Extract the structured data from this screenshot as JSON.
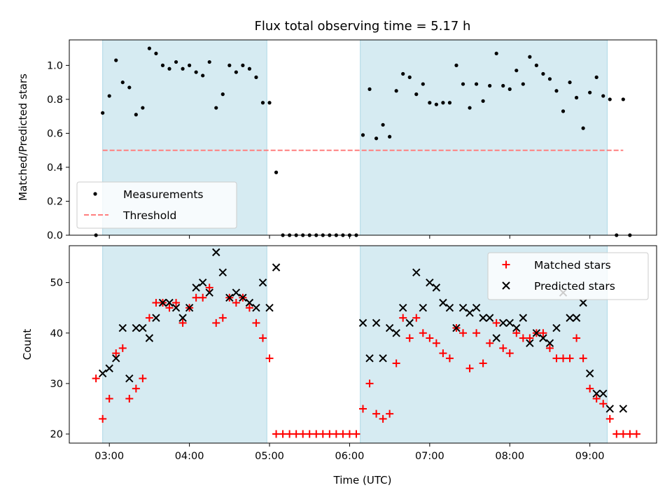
{
  "chart_data": [
    {
      "type": "scatter",
      "title": "Flux total observing time = 5.17 h",
      "ylabel": "Matched/Predicted stars",
      "xlabel": "",
      "xlim": [
        "02:30",
        "09:50"
      ],
      "ylim": [
        0,
        1.15
      ],
      "yticks": [
        0.0,
        0.2,
        0.4,
        0.6,
        0.8,
        1.0
      ],
      "ytick_labels": [
        "0.0",
        "0.2",
        "0.4",
        "0.6",
        "0.8",
        "1.0"
      ],
      "xticks": [
        "03:00",
        "04:00",
        "05:00",
        "06:00",
        "07:00",
        "08:00",
        "09:00"
      ],
      "show_xtick_labels": false,
      "grid": false,
      "legend": "lower-left",
      "shaded_intervals": [
        [
          "02:55",
          "04:58"
        ],
        [
          "06:08",
          "09:13"
        ]
      ],
      "shade_color": "#add8e6",
      "series": [
        {
          "name": "Measurements",
          "color": "#000000",
          "marker": "dot",
          "points": [
            [
              "02:50",
              0.0
            ],
            [
              "02:55",
              0.72
            ],
            [
              "03:00",
              0.82
            ],
            [
              "03:05",
              1.03
            ],
            [
              "03:10",
              0.9
            ],
            [
              "03:15",
              0.87
            ],
            [
              "03:20",
              0.71
            ],
            [
              "03:25",
              0.75
            ],
            [
              "03:30",
              1.1
            ],
            [
              "03:35",
              1.07
            ],
            [
              "03:40",
              1.0
            ],
            [
              "03:45",
              0.98
            ],
            [
              "03:50",
              1.02
            ],
            [
              "03:55",
              0.98
            ],
            [
              "04:00",
              1.0
            ],
            [
              "04:05",
              0.96
            ],
            [
              "04:10",
              0.94
            ],
            [
              "04:15",
              1.02
            ],
            [
              "04:20",
              0.75
            ],
            [
              "04:25",
              0.83
            ],
            [
              "04:30",
              1.0
            ],
            [
              "04:35",
              0.96
            ],
            [
              "04:40",
              1.0
            ],
            [
              "04:45",
              0.98
            ],
            [
              "04:50",
              0.93
            ],
            [
              "04:55",
              0.78
            ],
            [
              "05:00",
              0.78
            ],
            [
              "05:05",
              0.37
            ],
            [
              "05:10",
              0.0
            ],
            [
              "05:15",
              0.0
            ],
            [
              "05:20",
              0.0
            ],
            [
              "05:25",
              0.0
            ],
            [
              "05:30",
              0.0
            ],
            [
              "05:35",
              0.0
            ],
            [
              "05:40",
              0.0
            ],
            [
              "05:45",
              0.0
            ],
            [
              "05:50",
              0.0
            ],
            [
              "05:55",
              0.0
            ],
            [
              "06:00",
              0.0
            ],
            [
              "06:05",
              0.0
            ],
            [
              "06:10",
              0.59
            ],
            [
              "06:15",
              0.86
            ],
            [
              "06:20",
              0.57
            ],
            [
              "06:25",
              0.65
            ],
            [
              "06:30",
              0.58
            ],
            [
              "06:35",
              0.85
            ],
            [
              "06:40",
              0.95
            ],
            [
              "06:45",
              0.93
            ],
            [
              "06:50",
              0.83
            ],
            [
              "06:55",
              0.89
            ],
            [
              "07:00",
              0.78
            ],
            [
              "07:05",
              0.77
            ],
            [
              "07:10",
              0.78
            ],
            [
              "07:15",
              0.78
            ],
            [
              "07:20",
              1.0
            ],
            [
              "07:25",
              0.89
            ],
            [
              "07:30",
              0.75
            ],
            [
              "07:35",
              0.89
            ],
            [
              "07:40",
              0.79
            ],
            [
              "07:45",
              0.88
            ],
            [
              "07:50",
              1.07
            ],
            [
              "07:55",
              0.88
            ],
            [
              "08:00",
              0.86
            ],
            [
              "08:05",
              0.97
            ],
            [
              "08:10",
              0.89
            ],
            [
              "08:15",
              1.05
            ],
            [
              "08:20",
              1.0
            ],
            [
              "08:25",
              0.95
            ],
            [
              "08:30",
              0.92
            ],
            [
              "08:35",
              0.85
            ],
            [
              "08:40",
              0.73
            ],
            [
              "08:45",
              0.9
            ],
            [
              "08:50",
              0.81
            ],
            [
              "08:55",
              0.63
            ],
            [
              "09:00",
              0.84
            ],
            [
              "09:05",
              0.93
            ],
            [
              "09:10",
              0.82
            ],
            [
              "09:15",
              0.8
            ],
            [
              "09:20",
              0.0
            ],
            [
              "09:25",
              0.8
            ],
            [
              "09:30",
              0.0
            ]
          ]
        },
        {
          "name": "Threshold",
          "color": "#ff7f7f",
          "style": "dashed",
          "points": [
            [
              "02:55",
              0.5
            ],
            [
              "09:25",
              0.5
            ]
          ]
        }
      ]
    },
    {
      "type": "scatter",
      "title": "",
      "ylabel": "Count",
      "xlabel": "Time (UTC)",
      "xlim": [
        "02:30",
        "09:50"
      ],
      "ylim": [
        18.2,
        57.3
      ],
      "yticks": [
        20,
        30,
        40,
        50
      ],
      "ytick_labels": [
        "20",
        "30",
        "40",
        "50"
      ],
      "xticks": [
        "03:00",
        "04:00",
        "05:00",
        "06:00",
        "07:00",
        "08:00",
        "09:00"
      ],
      "xtick_labels": [
        "03:00",
        "04:00",
        "05:00",
        "06:00",
        "07:00",
        "08:00",
        "09:00"
      ],
      "grid": false,
      "legend": "top-right",
      "shaded_intervals": [
        [
          "02:55",
          "04:58"
        ],
        [
          "06:08",
          "09:13"
        ]
      ],
      "shade_color": "#add8e6",
      "series": [
        {
          "name": "Matched stars",
          "color": "#ff0000",
          "marker": "plus",
          "points": [
            [
              "02:50",
              31
            ],
            [
              "02:55",
              23
            ],
            [
              "03:00",
              27
            ],
            [
              "03:05",
              36
            ],
            [
              "03:10",
              37
            ],
            [
              "03:15",
              27
            ],
            [
              "03:20",
              29
            ],
            [
              "03:25",
              31
            ],
            [
              "03:30",
              43
            ],
            [
              "03:35",
              46
            ],
            [
              "03:40",
              46
            ],
            [
              "03:45",
              45
            ],
            [
              "03:50",
              46
            ],
            [
              "03:55",
              42
            ],
            [
              "04:00",
              45
            ],
            [
              "04:05",
              47
            ],
            [
              "04:10",
              47
            ],
            [
              "04:15",
              49
            ],
            [
              "04:20",
              42
            ],
            [
              "04:25",
              43
            ],
            [
              "04:30",
              47
            ],
            [
              "04:35",
              46
            ],
            [
              "04:40",
              47
            ],
            [
              "04:45",
              45
            ],
            [
              "04:50",
              42
            ],
            [
              "04:55",
              39
            ],
            [
              "05:00",
              35
            ],
            [
              "05:05",
              20
            ],
            [
              "05:10",
              20
            ],
            [
              "05:15",
              20
            ],
            [
              "05:20",
              20
            ],
            [
              "05:25",
              20
            ],
            [
              "05:30",
              20
            ],
            [
              "05:35",
              20
            ],
            [
              "05:40",
              20
            ],
            [
              "05:45",
              20
            ],
            [
              "05:50",
              20
            ],
            [
              "05:55",
              20
            ],
            [
              "06:00",
              20
            ],
            [
              "06:05",
              20
            ],
            [
              "06:10",
              25
            ],
            [
              "06:15",
              30
            ],
            [
              "06:20",
              24
            ],
            [
              "06:25",
              23
            ],
            [
              "06:30",
              24
            ],
            [
              "06:35",
              34
            ],
            [
              "06:40",
              43
            ],
            [
              "06:45",
              39
            ],
            [
              "06:50",
              43
            ],
            [
              "06:55",
              40
            ],
            [
              "07:00",
              39
            ],
            [
              "07:05",
              38
            ],
            [
              "07:10",
              36
            ],
            [
              "07:15",
              35
            ],
            [
              "07:20",
              41
            ],
            [
              "07:25",
              40
            ],
            [
              "07:30",
              33
            ],
            [
              "07:35",
              40
            ],
            [
              "07:40",
              34
            ],
            [
              "07:45",
              38
            ],
            [
              "07:50",
              42
            ],
            [
              "07:55",
              37
            ],
            [
              "08:00",
              36
            ],
            [
              "08:05",
              40
            ],
            [
              "08:10",
              39
            ],
            [
              "08:15",
              39
            ],
            [
              "08:20",
              40
            ],
            [
              "08:25",
              40
            ],
            [
              "08:30",
              37
            ],
            [
              "08:35",
              35
            ],
            [
              "08:40",
              35
            ],
            [
              "08:45",
              35
            ],
            [
              "08:50",
              39
            ],
            [
              "08:55",
              35
            ],
            [
              "09:00",
              29
            ],
            [
              "09:05",
              27
            ],
            [
              "09:10",
              26
            ],
            [
              "09:15",
              23
            ],
            [
              "09:20",
              20
            ],
            [
              "09:25",
              20
            ],
            [
              "09:30",
              20
            ],
            [
              "09:35",
              20
            ]
          ]
        },
        {
          "name": "Predicted stars",
          "color": "#000000",
          "marker": "x",
          "points": [
            [
              "02:55",
              32
            ],
            [
              "03:00",
              33
            ],
            [
              "03:05",
              35
            ],
            [
              "03:10",
              41
            ],
            [
              "03:15",
              31
            ],
            [
              "03:20",
              41
            ],
            [
              "03:25",
              41
            ],
            [
              "03:30",
              39
            ],
            [
              "03:35",
              43
            ],
            [
              "03:40",
              46
            ],
            [
              "03:45",
              46
            ],
            [
              "03:50",
              45
            ],
            [
              "03:55",
              43
            ],
            [
              "04:00",
              45
            ],
            [
              "04:05",
              49
            ],
            [
              "04:10",
              50
            ],
            [
              "04:15",
              48
            ],
            [
              "04:20",
              56
            ],
            [
              "04:25",
              52
            ],
            [
              "04:30",
              47
            ],
            [
              "04:35",
              48
            ],
            [
              "04:40",
              47
            ],
            [
              "04:45",
              46
            ],
            [
              "04:50",
              45
            ],
            [
              "04:55",
              50
            ],
            [
              "05:00",
              45
            ],
            [
              "05:05",
              53
            ],
            [
              "06:10",
              42
            ],
            [
              "06:15",
              35
            ],
            [
              "06:20",
              42
            ],
            [
              "06:25",
              35
            ],
            [
              "06:30",
              41
            ],
            [
              "06:35",
              40
            ],
            [
              "06:40",
              45
            ],
            [
              "06:45",
              42
            ],
            [
              "06:50",
              52
            ],
            [
              "06:55",
              45
            ],
            [
              "07:00",
              50
            ],
            [
              "07:05",
              49
            ],
            [
              "07:10",
              46
            ],
            [
              "07:15",
              45
            ],
            [
              "07:20",
              41
            ],
            [
              "07:25",
              45
            ],
            [
              "07:30",
              44
            ],
            [
              "07:35",
              45
            ],
            [
              "07:40",
              43
            ],
            [
              "07:45",
              43
            ],
            [
              "07:50",
              39
            ],
            [
              "07:55",
              42
            ],
            [
              "08:00",
              42
            ],
            [
              "08:05",
              41
            ],
            [
              "08:10",
              43
            ],
            [
              "08:15",
              38
            ],
            [
              "08:20",
              40
            ],
            [
              "08:25",
              39
            ],
            [
              "08:30",
              38
            ],
            [
              "08:35",
              41
            ],
            [
              "08:40",
              48
            ],
            [
              "08:45",
              43
            ],
            [
              "08:50",
              43
            ],
            [
              "08:55",
              46
            ],
            [
              "09:00",
              32
            ],
            [
              "09:05",
              28
            ],
            [
              "09:10",
              28
            ],
            [
              "09:15",
              25
            ],
            [
              "09:25",
              25
            ]
          ]
        }
      ]
    }
  ]
}
